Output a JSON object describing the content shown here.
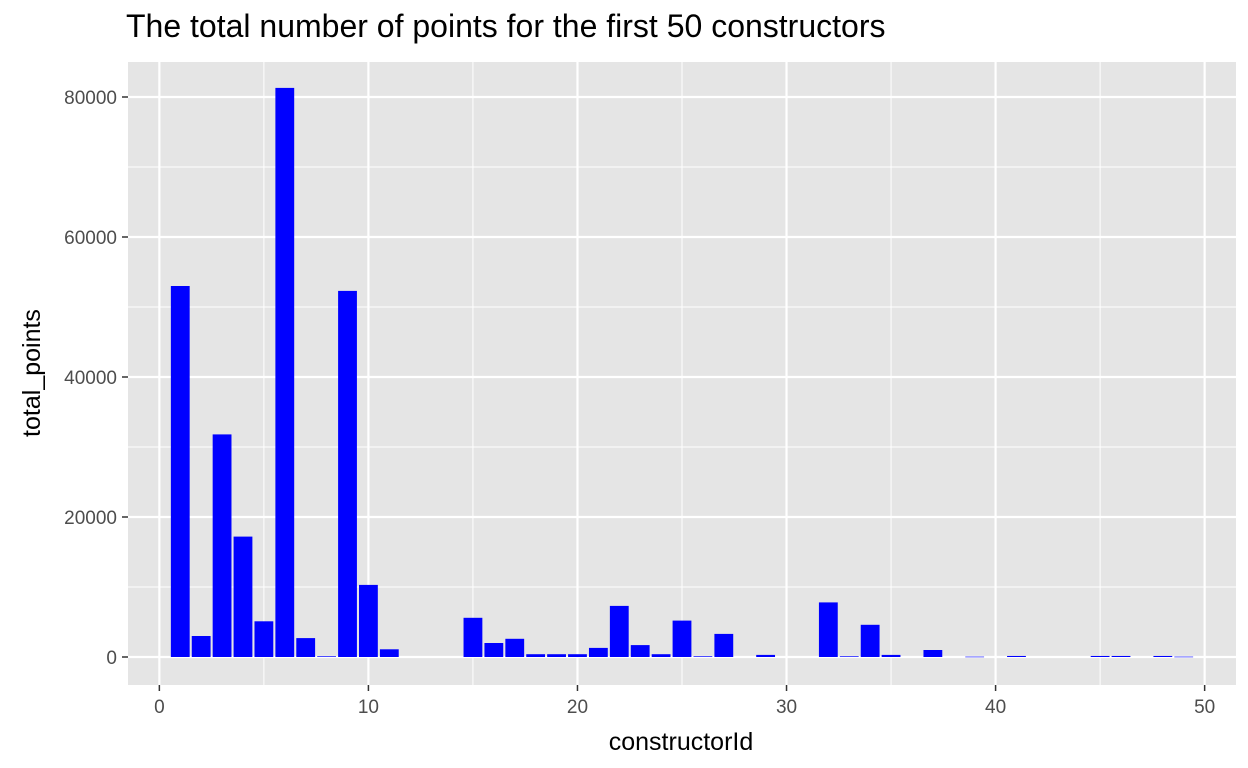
{
  "chart_data": {
    "type": "bar",
    "title": "The total number of points for the first 50 constructors",
    "xlabel": "constructorId",
    "ylabel": "total_points",
    "x": [
      1,
      2,
      3,
      4,
      5,
      6,
      7,
      8,
      9,
      10,
      11,
      12,
      13,
      14,
      15,
      16,
      17,
      18,
      19,
      20,
      21,
      22,
      23,
      24,
      25,
      26,
      27,
      28,
      29,
      30,
      31,
      32,
      33,
      34,
      35,
      36,
      37,
      38,
      39,
      40,
      41,
      42,
      43,
      44,
      45,
      46,
      47,
      48,
      49,
      50
    ],
    "values": [
      53000,
      3000,
      31800,
      17200,
      5100,
      81300,
      2700,
      100,
      52300,
      10300,
      1100,
      0,
      0,
      0,
      5600,
      2000,
      2600,
      400,
      400,
      400,
      1300,
      7300,
      1700,
      400,
      5200,
      100,
      3300,
      0,
      300,
      0,
      0,
      7800,
      100,
      4600,
      300,
      0,
      1000,
      0,
      50,
      0,
      150,
      0,
      0,
      0,
      150,
      150,
      0,
      150,
      50,
      0
    ],
    "xlim": [
      -1.5,
      51.5
    ],
    "ylim": [
      -4000,
      85000
    ],
    "xticks": [
      0,
      10,
      20,
      30,
      40,
      50
    ],
    "yticks": [
      0,
      20000,
      40000,
      60000,
      80000
    ],
    "bar_color": "#0000ff",
    "panel_color": "#e5e5e5",
    "grid_color": "#ffffff",
    "grid": true,
    "legend": "none"
  }
}
